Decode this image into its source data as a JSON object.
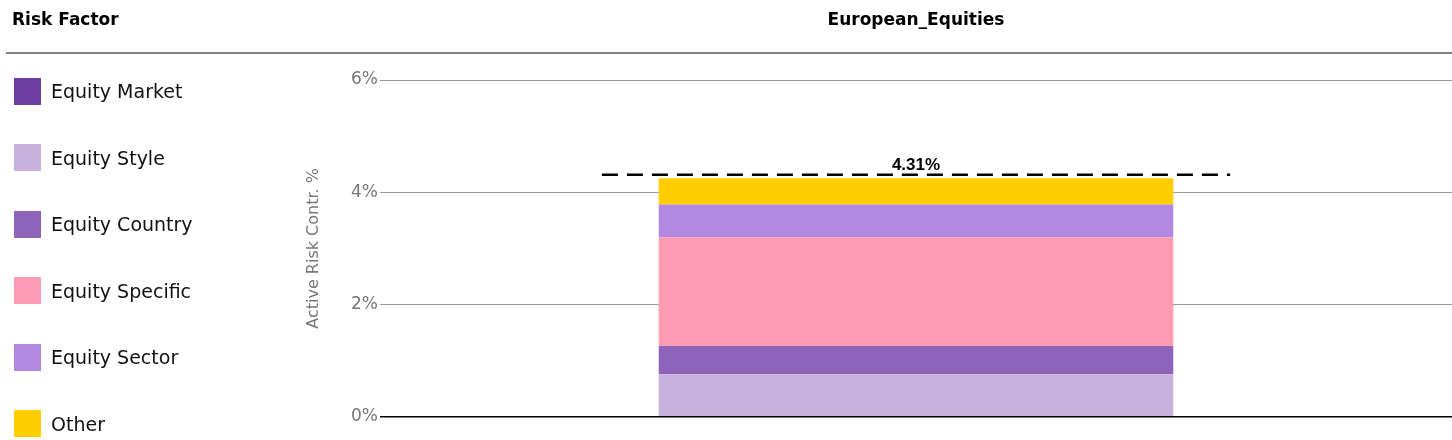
{
  "chart_data": {
    "type": "bar",
    "title": "European_Equities",
    "legend_title": "Risk Factor",
    "ylabel": "Active Risk Contr. %",
    "categories": [
      null
    ],
    "stacked": true,
    "legend": "left",
    "grid": "y",
    "series": [
      {
        "name": "Equity Market",
        "color": "#6e3fa3",
        "values": [
          0
        ]
      },
      {
        "name": "Equity Style",
        "color": "#c6b2dc",
        "values": [
          0.76
        ]
      },
      {
        "name": "Equity Country",
        "color": "#8e64bb",
        "values": [
          0.5
        ]
      },
      {
        "name": "Equity Specific",
        "color": "#fc9bb3",
        "values": [
          1.94
        ]
      },
      {
        "name": "Equity Sector",
        "color": "#b388e0",
        "values": [
          0.58
        ]
      },
      {
        "name": "Other",
        "color": "#ffcd00",
        "values": [
          0.47
        ]
      }
    ],
    "ylim": [
      0,
      6
    ],
    "yticks": [
      {
        "value": 0,
        "label": "0%"
      },
      {
        "value": 2,
        "label": "2%"
      },
      {
        "value": 4,
        "label": "4%"
      },
      {
        "value": 6,
        "label": "6%"
      }
    ],
    "ref_lines": [
      {
        "axis": "y",
        "value": 4.31,
        "label": "4.31%",
        "color": "#000000",
        "line_style": "dashed"
      }
    ]
  }
}
